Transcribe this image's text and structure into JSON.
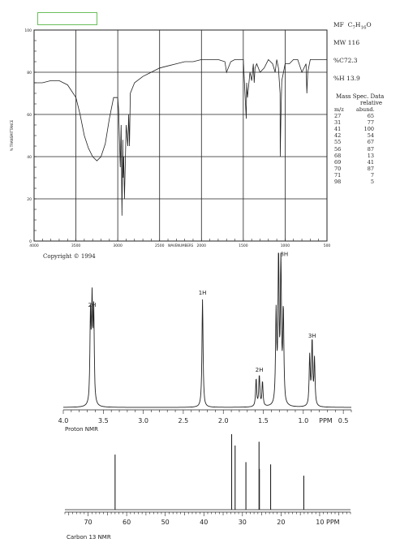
{
  "colors": {
    "ink": "#222222",
    "box": "#6abf5b"
  },
  "sidebar": {
    "mf_label": "MF",
    "mf_formula": "C7H16O",
    "mw": "MW 116",
    "pct_c": "%C72.3",
    "pct_h": "%H 13.9",
    "ms_title": "Mass Spec. Data",
    "ms_header_1": "relative",
    "ms_col_mz": "m/z",
    "ms_col_ab": "abund.",
    "ms_rows": [
      {
        "mz": "27",
        "ab": "65"
      },
      {
        "mz": "31",
        "ab": "77"
      },
      {
        "mz": "41",
        "ab": "100"
      },
      {
        "mz": "42",
        "ab": "54"
      },
      {
        "mz": "55",
        "ab": "67"
      },
      {
        "mz": "56",
        "ab": "87"
      },
      {
        "mz": "68",
        "ab": "13"
      },
      {
        "mz": "69",
        "ab": "41"
      },
      {
        "mz": "70",
        "ab": "87"
      },
      {
        "mz": "71",
        "ab": "7"
      },
      {
        "mz": "98",
        "ab": "5"
      }
    ]
  },
  "chart_data": [
    {
      "type": "line",
      "name": "ir",
      "ylabel": "% TRANSMITTANCE",
      "xlabel": "WAVENUMBERS",
      "copyright": "Copyright © 1994",
      "xlim": [
        4000,
        500
      ],
      "ylim": [
        0,
        100
      ],
      "xticks": [
        "4000",
        "3500",
        "3000",
        "2500",
        "2000",
        "1500",
        "1000",
        "500"
      ],
      "xtick_values": [
        4000,
        3500,
        3000,
        2500,
        2000,
        1500,
        1000,
        500
      ],
      "yticks": [
        "0",
        "20",
        "40",
        "60",
        "80",
        "100"
      ],
      "ytick_values": [
        0,
        20,
        40,
        60,
        80,
        100
      ],
      "x": [
        4000,
        3900,
        3800,
        3700,
        3600,
        3500,
        3450,
        3400,
        3350,
        3300,
        3250,
        3200,
        3150,
        3100,
        3050,
        3000,
        2990,
        2970,
        2960,
        2950,
        2940,
        2935,
        2930,
        2920,
        2900,
        2880,
        2870,
        2860,
        2850,
        2800,
        2700,
        2600,
        2500,
        2400,
        2300,
        2200,
        2100,
        2000,
        1900,
        1800,
        1720,
        1700,
        1650,
        1600,
        1500,
        1480,
        1465,
        1460,
        1450,
        1420,
        1400,
        1380,
        1370,
        1360,
        1340,
        1300,
        1250,
        1200,
        1150,
        1120,
        1100,
        1080,
        1060,
        1058,
        1050,
        1040,
        1020,
        1000,
        950,
        900,
        850,
        800,
        750,
        740,
        730,
        700,
        650,
        600,
        550,
        500
      ],
      "y": [
        75,
        75,
        76,
        76,
        74,
        68,
        60,
        50,
        44,
        40,
        38,
        40,
        46,
        58,
        68,
        68,
        62,
        35,
        55,
        12,
        48,
        30,
        40,
        20,
        55,
        45,
        60,
        45,
        70,
        75,
        78,
        80,
        82,
        83,
        84,
        85,
        85,
        86,
        86,
        86,
        85,
        80,
        85,
        86,
        86,
        70,
        58,
        75,
        68,
        80,
        76,
        84,
        75,
        82,
        84,
        80,
        82,
        86,
        84,
        80,
        86,
        82,
        70,
        40,
        60,
        76,
        80,
        84,
        84,
        86,
        86,
        80,
        84,
        70,
        80,
        86,
        86,
        86,
        86,
        86
      ],
      "grid": true
    },
    {
      "type": "line",
      "name": "proton-nmr",
      "xlabel": "PPM",
      "label": "Proton NMR",
      "xlim": [
        4.0,
        0.4
      ],
      "xticks": [
        "4.0",
        "3.5",
        "3.0",
        "2.5",
        "2.0",
        "1.5",
        "1.0",
        "0.5"
      ],
      "xtick_values": [
        4.0,
        3.5,
        3.0,
        2.5,
        2.0,
        1.5,
        1.0,
        0.5
      ],
      "peaks": [
        {
          "ppm": 3.66,
          "height": 0.56
        },
        {
          "ppm": 3.64,
          "height": 0.62
        },
        {
          "ppm": 3.62,
          "height": 0.58
        },
        {
          "ppm": 2.26,
          "height": 0.7
        },
        {
          "ppm": 1.59,
          "height": 0.18
        },
        {
          "ppm": 1.55,
          "height": 0.2
        },
        {
          "ppm": 1.51,
          "height": 0.16
        },
        {
          "ppm": 1.34,
          "height": 0.58
        },
        {
          "ppm": 1.31,
          "height": 0.95
        },
        {
          "ppm": 1.28,
          "height": 0.92
        },
        {
          "ppm": 1.25,
          "height": 0.6
        },
        {
          "ppm": 0.92,
          "height": 0.32
        },
        {
          "ppm": 0.89,
          "height": 0.42
        },
        {
          "ppm": 0.86,
          "height": 0.3
        }
      ],
      "annotations": [
        {
          "text": "2H",
          "ppm": 3.64
        },
        {
          "text": "1H",
          "ppm": 2.26
        },
        {
          "text": "2H",
          "ppm": 1.55
        },
        {
          "text": "8H",
          "ppm": 1.3
        },
        {
          "text": "3H",
          "ppm": 0.89
        }
      ]
    },
    {
      "type": "line",
      "name": "carbon-nmr",
      "xlabel": "PPM",
      "label": "Carbon 13 NMR",
      "xlim": [
        76,
        2
      ],
      "xticks": [
        "70",
        "60",
        "50",
        "40",
        "30",
        "20",
        "10 PPM"
      ],
      "xtick_values": [
        70,
        60,
        50,
        40,
        30,
        20,
        10
      ],
      "peaks": [
        {
          "ppm": 63.0,
          "height": 0.73
        },
        {
          "ppm": 32.8,
          "height": 1.0
        },
        {
          "ppm": 31.9,
          "height": 0.85
        },
        {
          "ppm": 29.1,
          "height": 0.63
        },
        {
          "ppm": 25.7,
          "height": 0.9
        },
        {
          "ppm": 25.6,
          "height": 0.54
        },
        {
          "ppm": 22.7,
          "height": 0.6
        },
        {
          "ppm": 14.1,
          "height": 0.45
        }
      ]
    }
  ]
}
